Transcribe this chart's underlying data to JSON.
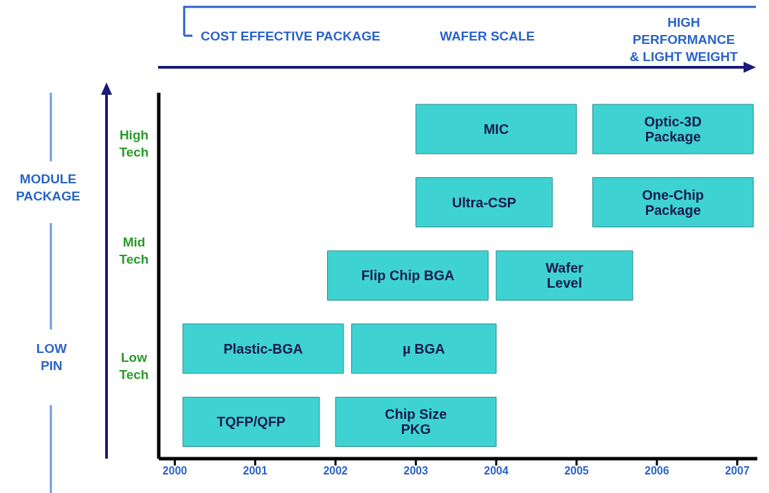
{
  "chart_data": {
    "type": "bar",
    "orientation": "horizontal",
    "categories": [
      null,
      null,
      null,
      null,
      null
    ],
    "series": [
      {
        "color": "#3fd2d2",
        "base": [
          2003,
          2003,
          2001.9,
          2000.1,
          2000.1
        ],
        "values": [
          2,
          1.7,
          2,
          2,
          1.7
        ],
        "value_labels": [
          "MIC",
          "Ultra-CSP",
          "Flip Chip BGA",
          "Plastic-BGA",
          "TQFP/QFP"
        ]
      },
      {
        "color": "#3fd2d2",
        "base": [
          2005.2,
          2005.2,
          2004,
          2002.2,
          2002
        ],
        "values": [
          2,
          2,
          1.7,
          1.8,
          2
        ],
        "value_labels": [
          "Optic-3D\nPackage",
          "One-Chip\nPackage",
          "Wafer\nLevel",
          "µ BGA",
          "Chip Size\nPKG"
        ]
      }
    ],
    "xlim": [
      1999.8,
      2007.25
    ],
    "xticks": [
      2000,
      2001,
      2002,
      2003,
      2004,
      2005,
      2006,
      2007
    ],
    "annotations": [
      "COST EFFECTIVE PACKAGE",
      "WAFER SCALE",
      "HIGH\nPERFORMANCE\n& LIGHT WEIGHT",
      "MODULE\nPACKAGE",
      "LOW\nPIN",
      "High\nTech",
      "Mid\nTech",
      "Low\nTech"
    ],
    "grid": false,
    "legend": false
  }
}
